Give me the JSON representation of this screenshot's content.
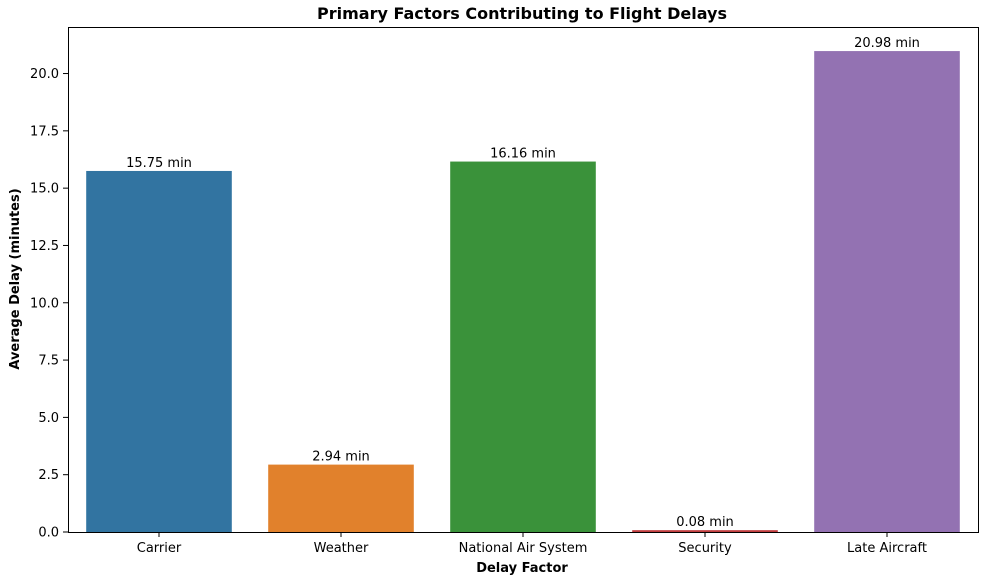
{
  "chart_data": {
    "type": "bar",
    "title": "Primary Factors Contributing to Flight Delays",
    "xlabel": "Delay Factor",
    "ylabel": "Average Delay (minutes)",
    "categories": [
      "Carrier",
      "Weather",
      "National Air System",
      "Security",
      "Late Aircraft"
    ],
    "values": [
      15.75,
      2.94,
      16.16,
      0.08,
      20.98
    ],
    "data_labels": [
      "15.75 min",
      "2.94 min",
      "16.16 min",
      "0.08 min",
      "20.98 min"
    ],
    "colors": [
      "#3274a1",
      "#e1812c",
      "#3a923a",
      "#c03d3e",
      "#9372b2"
    ],
    "yticks": [
      "0.0",
      "2.5",
      "5.0",
      "7.5",
      "10.0",
      "12.5",
      "15.0",
      "17.5",
      "20.0"
    ],
    "ytick_values": [
      0,
      2.5,
      5,
      7.5,
      10,
      12.5,
      15,
      17.5,
      20
    ],
    "ylim": [
      0,
      22.03
    ],
    "grid": false,
    "legend": "none"
  }
}
